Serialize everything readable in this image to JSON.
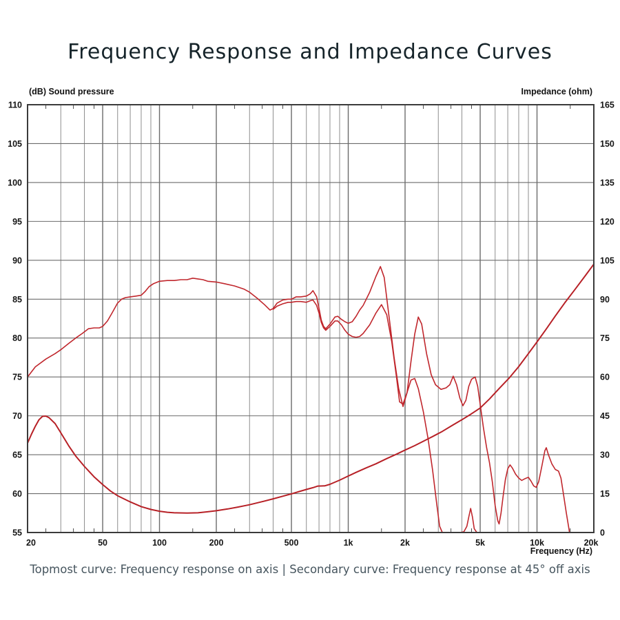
{
  "title": "Frequency Response and Impedance Curves",
  "caption": "Topmost curve: Frequency response on axis | Secondary curve: Frequency response at 45° off axis",
  "axes": {
    "left_title": "(dB)  Sound pressure",
    "right_title": "Impedance  (ohm)",
    "x_title": "Frequency  (Hz)",
    "left_ticks": [
      110,
      105,
      100,
      95,
      90,
      85,
      80,
      75,
      70,
      65,
      60,
      55
    ],
    "right_ticks": [
      165,
      150,
      135,
      120,
      105,
      90,
      75,
      60,
      45,
      30,
      15,
      0
    ],
    "x_ticks": [
      [
        20,
        "20"
      ],
      [
        50,
        "50"
      ],
      [
        100,
        "100"
      ],
      [
        200,
        "200"
      ],
      [
        500,
        "500"
      ],
      [
        1000,
        "1k"
      ],
      [
        2000,
        "2k"
      ],
      [
        5000,
        "5k"
      ],
      [
        10000,
        "10k"
      ],
      [
        20000,
        "20k"
      ]
    ]
  },
  "chart_data": {
    "type": "line",
    "x_scale": "log",
    "x_range_hz": [
      20,
      20000
    ],
    "y_left": {
      "label": "Sound pressure (dB)",
      "range": [
        55,
        110
      ],
      "step": 5
    },
    "y_right": {
      "label": "Impedance (ohm)",
      "range": [
        0,
        165
      ],
      "step": 15
    },
    "grid": {
      "v_major_hz": [
        50,
        100,
        200,
        500,
        1000,
        2000,
        5000,
        10000
      ],
      "v_minor_hz": [
        30,
        40,
        60,
        70,
        80,
        90,
        300,
        400,
        600,
        700,
        800,
        900,
        3000,
        4000,
        6000,
        7000,
        8000,
        9000
      ],
      "edge_tick_hz": [
        25,
        35,
        45,
        150,
        250,
        350,
        450,
        1500,
        2500,
        3500,
        4500,
        15000
      ],
      "h_lines_db": [
        60,
        65,
        70,
        75,
        80,
        85,
        90,
        95,
        100,
        105
      ],
      "grid_minor_color": "#8d8d8d",
      "grid_major_color": "#6b6b6b",
      "border_color": "#3a3a3a"
    },
    "series": [
      {
        "name": "frequency-response-on-axis",
        "axis": "left",
        "color": "#c0262c",
        "width": 1.6,
        "points": [
          [
            20,
            75.0
          ],
          [
            22,
            76.3
          ],
          [
            25,
            77.3
          ],
          [
            28,
            78.0
          ],
          [
            30,
            78.5
          ],
          [
            33,
            79.3
          ],
          [
            36,
            80.0
          ],
          [
            39,
            80.6
          ],
          [
            42,
            81.2
          ],
          [
            45,
            81.3
          ],
          [
            48,
            81.3
          ],
          [
            50,
            81.5
          ],
          [
            53,
            82.2
          ],
          [
            56,
            83.2
          ],
          [
            60,
            84.5
          ],
          [
            63,
            85.0
          ],
          [
            66,
            85.2
          ],
          [
            70,
            85.3
          ],
          [
            75,
            85.4
          ],
          [
            80,
            85.5
          ],
          [
            84,
            86.0
          ],
          [
            88,
            86.6
          ],
          [
            93,
            87.0
          ],
          [
            100,
            87.3
          ],
          [
            110,
            87.4
          ],
          [
            120,
            87.4
          ],
          [
            130,
            87.5
          ],
          [
            140,
            87.5
          ],
          [
            150,
            87.7
          ],
          [
            160,
            87.6
          ],
          [
            170,
            87.5
          ],
          [
            180,
            87.3
          ],
          [
            200,
            87.2
          ],
          [
            220,
            87.0
          ],
          [
            250,
            86.7
          ],
          [
            280,
            86.3
          ],
          [
            300,
            85.9
          ],
          [
            330,
            85.1
          ],
          [
            360,
            84.3
          ],
          [
            385,
            83.6
          ],
          [
            400,
            83.8
          ],
          [
            420,
            84.5
          ],
          [
            450,
            84.9
          ],
          [
            480,
            85.0
          ],
          [
            500,
            85.0
          ],
          [
            530,
            85.3
          ],
          [
            560,
            85.3
          ],
          [
            600,
            85.4
          ],
          [
            630,
            85.7
          ],
          [
            650,
            86.1
          ],
          [
            680,
            85.3
          ],
          [
            700,
            83.8
          ],
          [
            720,
            82.3
          ],
          [
            740,
            81.5
          ],
          [
            760,
            81.2
          ],
          [
            800,
            81.8
          ],
          [
            850,
            82.7
          ],
          [
            880,
            82.8
          ],
          [
            920,
            82.4
          ],
          [
            960,
            82.1
          ],
          [
            1000,
            81.9
          ],
          [
            1050,
            82.1
          ],
          [
            1100,
            82.8
          ],
          [
            1150,
            83.6
          ],
          [
            1200,
            84.2
          ],
          [
            1300,
            85.9
          ],
          [
            1400,
            87.9
          ],
          [
            1480,
            89.2
          ],
          [
            1550,
            87.8
          ],
          [
            1650,
            82.5
          ],
          [
            1750,
            77.5
          ],
          [
            1850,
            73.5
          ],
          [
            1950,
            71.2
          ],
          [
            2050,
            73.0
          ],
          [
            2150,
            77.0
          ],
          [
            2250,
            80.5
          ],
          [
            2350,
            82.7
          ],
          [
            2450,
            81.8
          ],
          [
            2600,
            78.0
          ],
          [
            2750,
            75.3
          ],
          [
            2900,
            74.0
          ],
          [
            3100,
            73.4
          ],
          [
            3300,
            73.6
          ],
          [
            3450,
            74.0
          ],
          [
            3600,
            75.1
          ],
          [
            3750,
            74.0
          ],
          [
            3900,
            72.3
          ],
          [
            4050,
            71.3
          ],
          [
            4200,
            72.0
          ],
          [
            4350,
            73.8
          ],
          [
            4500,
            74.7
          ],
          [
            4700,
            75.0
          ],
          [
            4850,
            73.8
          ],
          [
            5000,
            71.5
          ],
          [
            5200,
            68.5
          ],
          [
            5400,
            66.0
          ],
          [
            5600,
            64.0
          ],
          [
            5800,
            61.5
          ],
          [
            6000,
            58.5
          ],
          [
            6200,
            56.5
          ],
          [
            6300,
            56.1
          ],
          [
            6450,
            57.5
          ],
          [
            6600,
            59.5
          ],
          [
            6800,
            61.8
          ],
          [
            7000,
            63.2
          ],
          [
            7200,
            63.7
          ],
          [
            7400,
            63.3
          ],
          [
            7700,
            62.5
          ],
          [
            8000,
            62.0
          ],
          [
            8300,
            61.7
          ],
          [
            8600,
            61.9
          ],
          [
            9000,
            62.1
          ],
          [
            9300,
            61.6
          ],
          [
            9600,
            61.0
          ],
          [
            9900,
            60.8
          ],
          [
            10200,
            61.5
          ],
          [
            10600,
            63.5
          ],
          [
            11000,
            65.5
          ],
          [
            11200,
            65.9
          ],
          [
            11500,
            65.0
          ],
          [
            12000,
            63.8
          ],
          [
            12500,
            63.1
          ],
          [
            13000,
            62.9
          ],
          [
            13400,
            62.0
          ],
          [
            13800,
            60.0
          ],
          [
            14300,
            57.5
          ],
          [
            14800,
            55.3
          ],
          [
            15000,
            54.0
          ]
        ]
      },
      {
        "name": "frequency-response-45deg-off-axis",
        "axis": "left",
        "color": "#c0262c",
        "width": 1.6,
        "points": [
          [
            400,
            83.7
          ],
          [
            420,
            84.1
          ],
          [
            450,
            84.4
          ],
          [
            480,
            84.6
          ],
          [
            500,
            84.6
          ],
          [
            530,
            84.7
          ],
          [
            560,
            84.7
          ],
          [
            600,
            84.6
          ],
          [
            630,
            84.8
          ],
          [
            650,
            84.9
          ],
          [
            680,
            84.2
          ],
          [
            700,
            83.2
          ],
          [
            720,
            82.0
          ],
          [
            740,
            81.3
          ],
          [
            760,
            81.0
          ],
          [
            800,
            81.5
          ],
          [
            850,
            82.2
          ],
          [
            880,
            82.2
          ],
          [
            920,
            81.7
          ],
          [
            960,
            81.0
          ],
          [
            1000,
            80.5
          ],
          [
            1050,
            80.2
          ],
          [
            1100,
            80.1
          ],
          [
            1150,
            80.2
          ],
          [
            1200,
            80.6
          ],
          [
            1300,
            81.7
          ],
          [
            1400,
            83.2
          ],
          [
            1500,
            84.3
          ],
          [
            1600,
            83.0
          ],
          [
            1700,
            79.5
          ],
          [
            1800,
            75.0
          ],
          [
            1870,
            71.8
          ],
          [
            1950,
            71.5
          ],
          [
            2050,
            73.0
          ],
          [
            2150,
            74.6
          ],
          [
            2250,
            74.8
          ],
          [
            2350,
            73.5
          ],
          [
            2500,
            70.5
          ],
          [
            2650,
            67.0
          ],
          [
            2800,
            63.0
          ],
          [
            2950,
            58.5
          ],
          [
            3050,
            55.8
          ],
          [
            3150,
            55.0
          ],
          [
            3300,
            55.0
          ],
          [
            3600,
            55.0
          ],
          [
            3900,
            55.0
          ],
          [
            4100,
            55.1
          ],
          [
            4250,
            55.8
          ],
          [
            4350,
            57.0
          ],
          [
            4450,
            58.1
          ],
          [
            4550,
            57.0
          ],
          [
            4650,
            55.5
          ],
          [
            4800,
            55.0
          ],
          [
            4900,
            54.3
          ]
        ]
      },
      {
        "name": "impedance",
        "axis": "right",
        "color": "#b72026",
        "width": 2,
        "points": [
          [
            20,
            34.5
          ],
          [
            21,
            38.0
          ],
          [
            22,
            41.0
          ],
          [
            23,
            43.5
          ],
          [
            24,
            44.8
          ],
          [
            25,
            44.9
          ],
          [
            26,
            44.3
          ],
          [
            28,
            42.0
          ],
          [
            30,
            38.5
          ],
          [
            33,
            33.5
          ],
          [
            36,
            29.5
          ],
          [
            40,
            25.5
          ],
          [
            45,
            21.5
          ],
          [
            50,
            18.5
          ],
          [
            55,
            16.0
          ],
          [
            60,
            14.2
          ],
          [
            70,
            11.8
          ],
          [
            80,
            10.0
          ],
          [
            90,
            8.9
          ],
          [
            100,
            8.2
          ],
          [
            110,
            7.8
          ],
          [
            120,
            7.6
          ],
          [
            140,
            7.5
          ],
          [
            160,
            7.6
          ],
          [
            180,
            8.0
          ],
          [
            200,
            8.4
          ],
          [
            230,
            9.1
          ],
          [
            260,
            9.8
          ],
          [
            300,
            10.7
          ],
          [
            350,
            11.9
          ],
          [
            400,
            13.0
          ],
          [
            450,
            14.0
          ],
          [
            500,
            14.9
          ],
          [
            550,
            15.8
          ],
          [
            600,
            16.6
          ],
          [
            650,
            17.3
          ],
          [
            690,
            17.9
          ],
          [
            750,
            18.0
          ],
          [
            800,
            18.6
          ],
          [
            900,
            20.2
          ],
          [
            1000,
            21.8
          ],
          [
            1100,
            23.2
          ],
          [
            1250,
            25.0
          ],
          [
            1400,
            26.5
          ],
          [
            1600,
            28.5
          ],
          [
            1800,
            30.2
          ],
          [
            2000,
            31.8
          ],
          [
            2250,
            33.5
          ],
          [
            2500,
            35.2
          ],
          [
            2800,
            37.0
          ],
          [
            3150,
            39.0
          ],
          [
            3550,
            41.3
          ],
          [
            4000,
            43.5
          ],
          [
            4500,
            45.8
          ],
          [
            5000,
            48.0
          ],
          [
            5600,
            51.5
          ],
          [
            6300,
            55.5
          ],
          [
            7100,
            59.5
          ],
          [
            8000,
            64.0
          ],
          [
            9000,
            69.0
          ],
          [
            10000,
            73.5
          ],
          [
            11200,
            78.5
          ],
          [
            12500,
            83.5
          ],
          [
            14000,
            88.5
          ],
          [
            16000,
            94.0
          ],
          [
            18000,
            99.0
          ],
          [
            20000,
            103.5
          ]
        ]
      }
    ]
  }
}
